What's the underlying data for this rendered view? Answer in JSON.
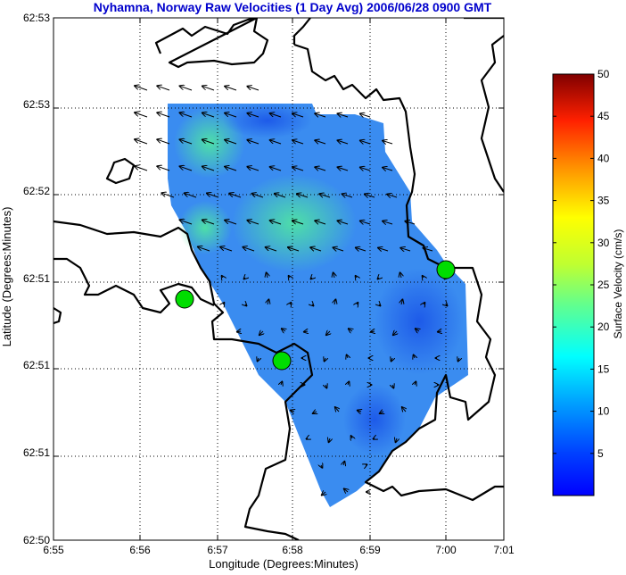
{
  "chart_data": {
    "type": "map",
    "title": "Nyhamna, Norway Raw Velocities (1 Day Avg) 2006/06/28 0900 GMT",
    "xlabel": "Longitude (Degrees:Minutes)",
    "ylabel": "Latitude (Degrees:Minutes)",
    "x_ticks": [
      "6:55",
      "6:56",
      "6:57",
      "6:58",
      "6:59",
      "7:00",
      "7:01"
    ],
    "y_ticks": [
      "62:53",
      "62:53",
      "62:52",
      "62:51",
      "62:51",
      "62:51",
      "62:50"
    ],
    "grid": true,
    "colorbar": {
      "label": "Surface Velocity (cm/s)",
      "range": [
        0,
        50
      ],
      "ticks": [
        "5",
        "10",
        "15",
        "20",
        "25",
        "30",
        "35",
        "40",
        "45",
        "50"
      ],
      "colormap": "jet"
    },
    "radar_sites": 3,
    "colors": {
      "title": "#0000cc",
      "site_marker": "#00dd00",
      "coastline": "#000000",
      "vectors": "#000000"
    }
  }
}
